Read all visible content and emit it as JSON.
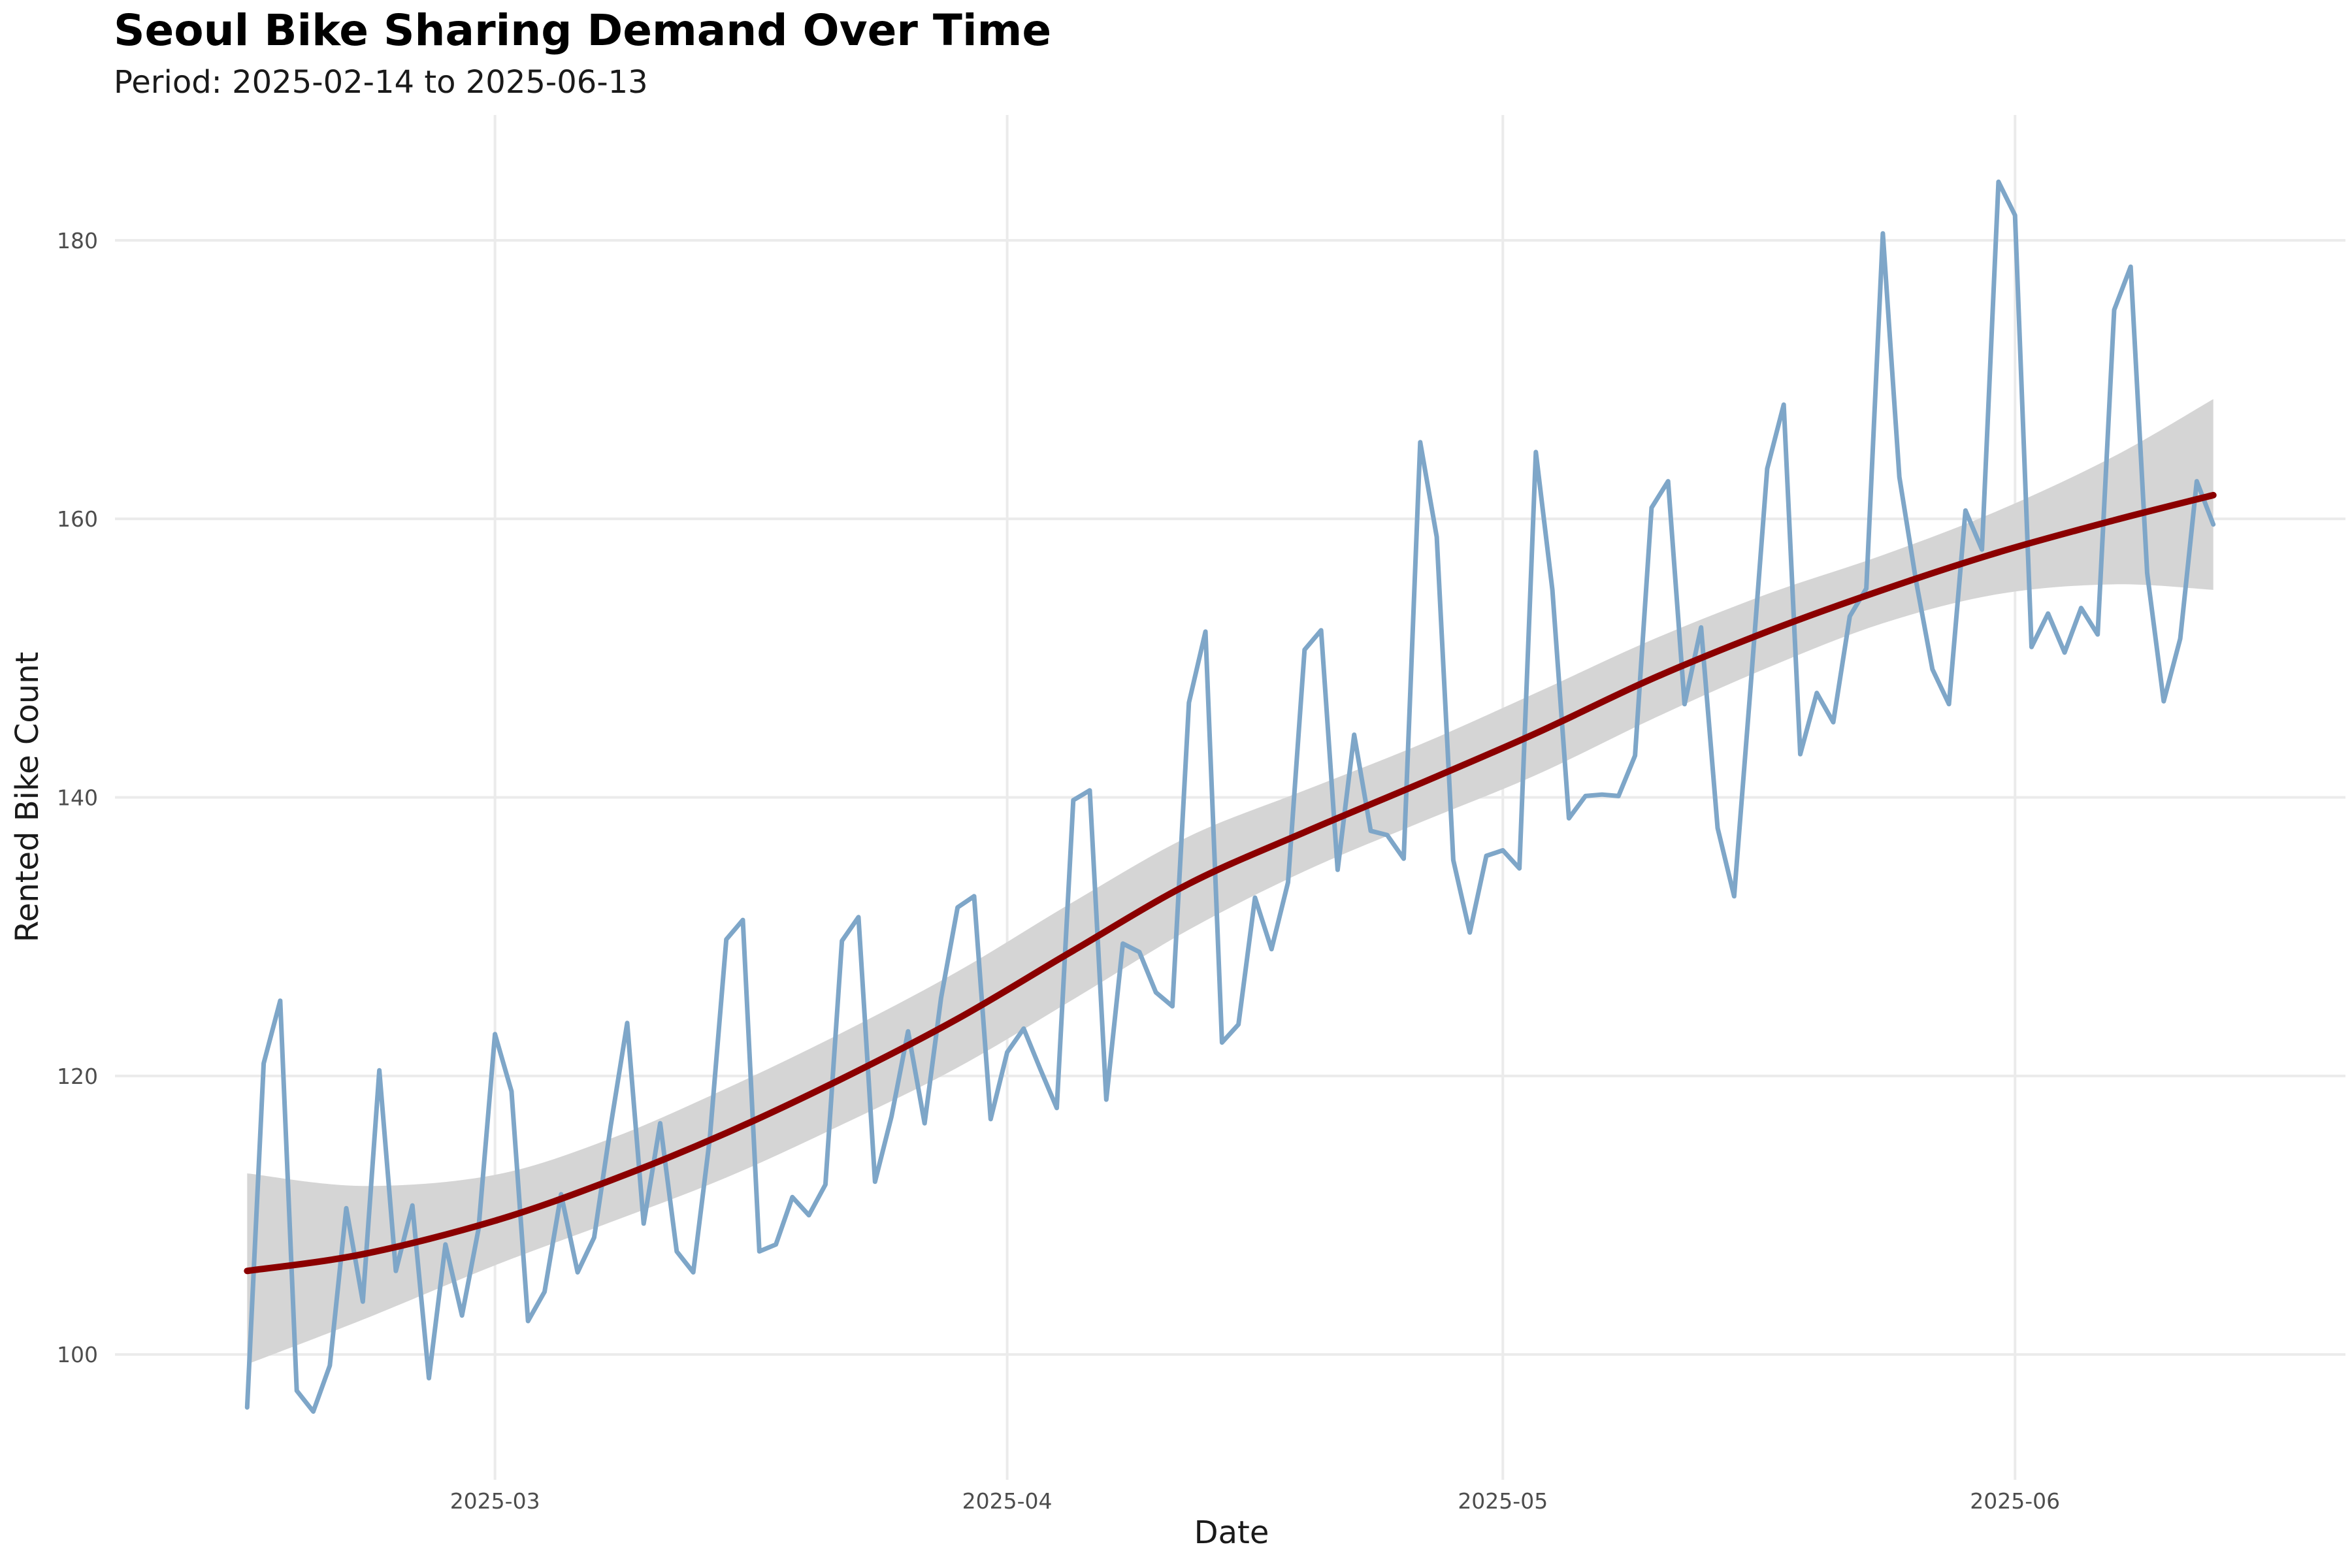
{
  "chart_data": {
    "type": "line",
    "title": "Seoul Bike Sharing Demand Over Time",
    "subtitle": "Period: 2025-02-14 to 2025-06-13",
    "xlabel": "Date",
    "ylabel": "Rented Bike Count",
    "x_start": "2025-02-14",
    "x_end": "2025-06-13",
    "xlim": [
      "2025-02-06",
      "2025-06-21"
    ],
    "ylim": [
      91,
      189
    ],
    "x_ticks": [
      {
        "date": "2025-03-01",
        "label": "2025-03"
      },
      {
        "date": "2025-04-01",
        "label": "2025-04"
      },
      {
        "date": "2025-05-01",
        "label": "2025-05"
      },
      {
        "date": "2025-06-01",
        "label": "2025-06"
      }
    ],
    "y_ticks": [
      100,
      120,
      140,
      160,
      180
    ],
    "grid": true,
    "series": [
      {
        "type": "line",
        "color": "#7ea6c8",
        "dates": [
          "2025-02-14",
          "2025-02-15",
          "2025-02-16",
          "2025-02-17",
          "2025-02-18",
          "2025-02-19",
          "2025-02-20",
          "2025-02-21",
          "2025-02-22",
          "2025-02-23",
          "2025-02-24",
          "2025-02-25",
          "2025-02-26",
          "2025-02-27",
          "2025-02-28",
          "2025-03-01",
          "2025-03-02",
          "2025-03-03",
          "2025-03-04",
          "2025-03-05",
          "2025-03-06",
          "2025-03-07",
          "2025-03-08",
          "2025-03-09",
          "2025-03-10",
          "2025-03-11",
          "2025-03-12",
          "2025-03-13",
          "2025-03-14",
          "2025-03-15",
          "2025-03-16",
          "2025-03-17",
          "2025-03-18",
          "2025-03-19",
          "2025-03-20",
          "2025-03-21",
          "2025-03-22",
          "2025-03-23",
          "2025-03-24",
          "2025-03-25",
          "2025-03-26",
          "2025-03-27",
          "2025-03-28",
          "2025-03-29",
          "2025-03-30",
          "2025-03-31",
          "2025-04-01",
          "2025-04-02",
          "2025-04-03",
          "2025-04-04",
          "2025-04-05",
          "2025-04-06",
          "2025-04-07",
          "2025-04-08",
          "2025-04-09",
          "2025-04-10",
          "2025-04-11",
          "2025-04-12",
          "2025-04-13",
          "2025-04-14",
          "2025-04-15",
          "2025-04-16",
          "2025-04-17",
          "2025-04-18",
          "2025-04-19",
          "2025-04-20",
          "2025-04-21",
          "2025-04-22",
          "2025-04-23",
          "2025-04-24",
          "2025-04-25",
          "2025-04-26",
          "2025-04-27",
          "2025-04-28",
          "2025-04-29",
          "2025-04-30",
          "2025-05-01",
          "2025-05-02",
          "2025-05-03",
          "2025-05-04",
          "2025-05-05",
          "2025-05-06",
          "2025-05-07",
          "2025-05-08",
          "2025-05-09",
          "2025-05-10",
          "2025-05-11",
          "2025-05-12",
          "2025-05-13",
          "2025-05-14",
          "2025-05-15",
          "2025-05-16",
          "2025-05-17",
          "2025-05-18",
          "2025-05-19",
          "2025-05-20",
          "2025-05-21",
          "2025-05-22",
          "2025-05-23",
          "2025-05-24",
          "2025-05-25",
          "2025-05-26",
          "2025-05-27",
          "2025-05-28",
          "2025-05-29",
          "2025-05-30",
          "2025-05-31",
          "2025-06-01",
          "2025-06-02",
          "2025-06-03",
          "2025-06-04",
          "2025-06-05",
          "2025-06-06",
          "2025-06-07",
          "2025-06-08",
          "2025-06-09",
          "2025-06-10",
          "2025-06-11",
          "2025-06-12",
          "2025-06-13"
        ],
        "values": [
          96.2,
          120.9,
          125.4,
          97.4,
          95.9,
          99.2,
          110.5,
          103.8,
          120.4,
          106.0,
          110.7,
          98.3,
          107.9,
          102.8,
          109.0,
          123.0,
          118.9,
          102.4,
          104.5,
          111.5,
          105.9,
          108.4,
          116.4,
          123.8,
          109.4,
          116.6,
          107.4,
          105.9,
          115.5,
          129.8,
          131.2,
          107.4,
          107.9,
          111.3,
          110.0,
          112.2,
          129.7,
          131.4,
          112.4,
          117.1,
          123.2,
          116.6,
          125.6,
          132.1,
          132.9,
          116.9,
          121.7,
          123.4,
          120.5,
          117.7,
          139.8,
          140.5,
          118.3,
          129.5,
          128.9,
          126.0,
          125.0,
          146.8,
          151.9,
          122.4,
          123.7,
          132.8,
          129.1,
          133.9,
          150.6,
          152.0,
          134.8,
          144.5,
          137.6,
          137.3,
          135.6,
          165.5,
          158.7,
          135.5,
          130.3,
          135.8,
          136.2,
          134.9,
          164.8,
          154.9,
          138.5,
          140.1,
          140.2,
          140.1,
          143.0,
          160.8,
          162.7,
          146.7,
          152.2,
          137.8,
          132.9,
          148.0,
          163.6,
          168.2,
          143.1,
          147.5,
          145.4,
          153.0,
          155.0,
          180.5,
          163.0,
          155.6,
          149.2,
          146.7,
          160.6,
          157.8,
          184.2,
          181.8,
          150.8,
          153.2,
          150.4,
          153.6,
          151.7,
          175.0,
          178.1,
          156.1,
          146.9,
          151.4,
          162.7,
          159.6
        ]
      },
      {
        "type": "smooth",
        "color": "#8b0000",
        "band_color": "#d5d5d5",
        "dates": [
          "2025-02-14",
          "2025-02-21",
          "2025-03-01",
          "2025-03-08",
          "2025-03-15",
          "2025-03-22",
          "2025-03-29",
          "2025-04-05",
          "2025-04-12",
          "2025-04-19",
          "2025-04-26",
          "2025-05-03",
          "2025-05-10",
          "2025-05-17",
          "2025-05-24",
          "2025-05-31",
          "2025-06-07",
          "2025-06-13"
        ],
        "values": [
          106.0,
          107.2,
          109.6,
          112.5,
          115.9,
          119.8,
          124.1,
          129.0,
          133.8,
          137.5,
          141.0,
          144.6,
          148.5,
          151.9,
          154.9,
          157.6,
          159.9,
          161.7
        ],
        "lower": [
          99.3,
          102.5,
          106.4,
          109.5,
          112.7,
          116.5,
          120.6,
          125.5,
          130.5,
          134.7,
          138.2,
          141.6,
          145.6,
          149.3,
          152.5,
          154.6,
          155.3,
          154.9
        ],
        "upper": [
          113.0,
          112.1,
          112.9,
          115.5,
          119.1,
          123.1,
          127.5,
          132.5,
          137.2,
          140.5,
          143.8,
          147.5,
          151.3,
          154.6,
          157.4,
          160.6,
          164.5,
          168.6
        ]
      }
    ]
  }
}
